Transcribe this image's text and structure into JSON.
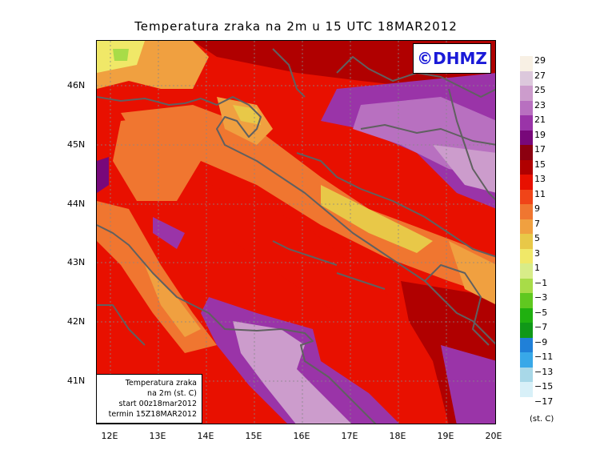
{
  "title": "Temperatura zraka na 2m u 15 UTC 18MAR2012",
  "copyright": "©DHMZ",
  "legend": {
    "line1": "Temperatura zraka",
    "line2": "na 2m (st. C)",
    "line3": "start 00z18mar2012",
    "line4": "termin 15Z18MAR2012"
  },
  "colorbar": {
    "unit": "(st. C)",
    "labels": [
      "29",
      "27",
      "25",
      "23",
      "21",
      "19",
      "17",
      "15",
      "13",
      "11",
      "9",
      "7",
      "5",
      "3",
      "1",
      "−1",
      "−3",
      "−5",
      "−7",
      "−9",
      "−11",
      "−13",
      "−15",
      "−17"
    ],
    "colors": [
      "#f8f0e4",
      "#dcc8dc",
      "#cc9ccc",
      "#b870c0",
      "#9a34a8",
      "#78087a",
      "#8c0010",
      "#b00000",
      "#e81000",
      "#f04418",
      "#f07630",
      "#f0a040",
      "#e8c848",
      "#f0e868",
      "#d8ec88",
      "#a8dc48",
      "#60c820",
      "#20b010",
      "#109818",
      "#2080d8",
      "#38a8e8",
      "#a8d8e8",
      "#d8f0f8",
      "#ffffff"
    ]
  },
  "axes": {
    "lat_labels": [
      "46N",
      "45N",
      "44N",
      "43N",
      "42N",
      "41N"
    ],
    "lon_labels": [
      "12E",
      "13E",
      "14E",
      "15E",
      "16E",
      "17E",
      "18E",
      "19E",
      "20E"
    ]
  }
}
